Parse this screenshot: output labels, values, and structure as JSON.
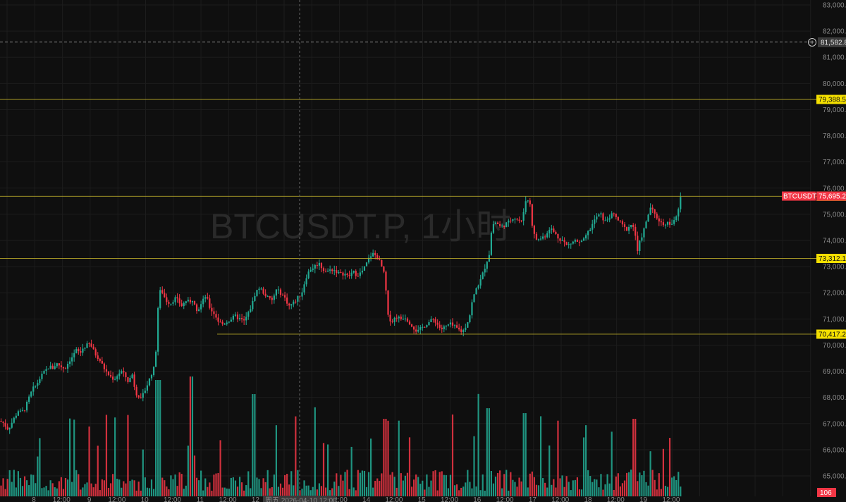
{
  "watermark": "BTCUSDT.P, 1小时",
  "symbol_tag": "BTCUSDT.P",
  "volume_tag": "106",
  "crosshair_price": "81,582.8",
  "crosshair_time": "周五 2026-04-10 12:00",
  "colors": {
    "background": "#0f0f0f",
    "grid": "#1c1c1c",
    "up": "#22ab94",
    "down": "#f23645",
    "level_line": "#b9a92a",
    "level_tag": "#f5e000",
    "last_price_tag": "#f23645",
    "axis_text": "#8a8a8a"
  },
  "chart_data": {
    "type": "candlestick",
    "title": "BTCUSDT.P, 1小时",
    "y_ticks": [
      "83,000.0",
      "82,000.0",
      "81,000.0",
      "80,000.0",
      "79,000.0",
      "78,000.0",
      "77,000.0",
      "76,000.0",
      "75,000.0",
      "74,000.0",
      "73,000.0",
      "72,000.0",
      "71,000.0",
      "70,000.0",
      "69,000.0",
      "68,000.0",
      "67,000.0",
      "66,000.0",
      "65,000.0"
    ],
    "ylim": [
      64900,
      83300
    ],
    "x_ticks": [
      "8",
      "12:00",
      "9",
      "12:00",
      "10",
      "12:00",
      "11",
      "12:00",
      "12",
      "12:00",
      "13",
      "12:00",
      "14",
      "12:00",
      "15",
      "12:00",
      "16",
      "12:00",
      "17",
      "12:00",
      "18",
      "12:00",
      "19",
      "12:00"
    ],
    "levels": [
      {
        "value": 79388.5,
        "label": "79,388.5"
      },
      {
        "value": 75689.6,
        "label": "75,689.6"
      },
      {
        "value": 73312.1,
        "label": "73,312.1"
      },
      {
        "value": 70417.2,
        "label": "70,417.2"
      }
    ],
    "last_price": {
      "value": 75695.2,
      "label": "75,695.2"
    },
    "crosshair": {
      "price": 81582.8,
      "label": "81,582.8"
    },
    "close_path": [
      [
        0,
        67100
      ],
      [
        6,
        67000
      ],
      [
        10,
        66800
      ],
      [
        14,
        66900
      ],
      [
        20,
        67200
      ],
      [
        26,
        67500
      ],
      [
        30,
        67400
      ],
      [
        36,
        67600
      ],
      [
        40,
        67900
      ],
      [
        46,
        68300
      ],
      [
        52,
        68500
      ],
      [
        58,
        68800
      ],
      [
        64,
        69000
      ],
      [
        70,
        69200
      ],
      [
        74,
        69100
      ],
      [
        80,
        69300
      ],
      [
        86,
        69200
      ],
      [
        92,
        69100
      ],
      [
        98,
        69400
      ],
      [
        104,
        69600
      ],
      [
        108,
        69800
      ],
      [
        114,
        69700
      ],
      [
        118,
        69900
      ],
      [
        124,
        70000
      ],
      [
        128,
        70050
      ],
      [
        134,
        69700
      ],
      [
        140,
        69500
      ],
      [
        144,
        69300
      ],
      [
        150,
        69000
      ],
      [
        156,
        68800
      ],
      [
        162,
        68700
      ],
      [
        168,
        68900
      ],
      [
        172,
        69000
      ],
      [
        178,
        68800
      ],
      [
        182,
        68600
      ],
      [
        188,
        68900
      ],
      [
        192,
        68200
      ],
      [
        196,
        68100
      ],
      [
        200,
        67900
      ],
      [
        206,
        68300
      ],
      [
        212,
        68700
      ],
      [
        216,
        69000
      ],
      [
        220,
        69200
      ],
      [
        224,
        71400
      ],
      [
        228,
        72200
      ],
      [
        232,
        71900
      ],
      [
        236,
        71700
      ],
      [
        242,
        71600
      ],
      [
        248,
        71800
      ],
      [
        252,
        71700
      ],
      [
        258,
        71500
      ],
      [
        264,
        71700
      ],
      [
        270,
        71600
      ],
      [
        274,
        71800
      ],
      [
        280,
        71300
      ],
      [
        286,
        71600
      ],
      [
        292,
        71900
      ],
      [
        298,
        71400
      ],
      [
        304,
        71200
      ],
      [
        310,
        70900
      ],
      [
        316,
        70800
      ],
      [
        322,
        70900
      ],
      [
        328,
        71000
      ],
      [
        334,
        71100
      ],
      [
        340,
        71000
      ],
      [
        346,
        70900
      ],
      [
        352,
        71200
      ],
      [
        358,
        71600
      ],
      [
        362,
        72000
      ],
      [
        368,
        72200
      ],
      [
        374,
        72000
      ],
      [
        380,
        71800
      ],
      [
        386,
        71700
      ],
      [
        392,
        72100
      ],
      [
        398,
        72000
      ],
      [
        404,
        71800
      ],
      [
        410,
        71500
      ],
      [
        416,
        71600
      ],
      [
        422,
        71800
      ],
      [
        428,
        72000
      ],
      [
        434,
        72600
      ],
      [
        440,
        72900
      ],
      [
        446,
        73000
      ],
      [
        452,
        73150
      ],
      [
        458,
        72900
      ],
      [
        464,
        72800
      ],
      [
        470,
        72900
      ],
      [
        476,
        72850
      ],
      [
        482,
        72700
      ],
      [
        488,
        72750
      ],
      [
        494,
        72600
      ],
      [
        500,
        72800
      ],
      [
        506,
        72700
      ],
      [
        512,
        72750
      ],
      [
        518,
        73000
      ],
      [
        524,
        73350
      ],
      [
        528,
        73500
      ],
      [
        534,
        73400
      ],
      [
        540,
        73100
      ],
      [
        546,
        72600
      ],
      [
        550,
        71100
      ],
      [
        556,
        70900
      ],
      [
        562,
        71100
      ],
      [
        568,
        71000
      ],
      [
        574,
        71100
      ],
      [
        580,
        70900
      ],
      [
        586,
        70700
      ],
      [
        592,
        70500
      ],
      [
        598,
        70650
      ],
      [
        604,
        70800
      ],
      [
        610,
        70900
      ],
      [
        616,
        71000
      ],
      [
        620,
        70800
      ],
      [
        626,
        70600
      ],
      [
        632,
        70700
      ],
      [
        638,
        70800
      ],
      [
        644,
        70700
      ],
      [
        650,
        70600
      ],
      [
        656,
        70500
      ],
      [
        660,
        70700
      ],
      [
        666,
        71100
      ],
      [
        670,
        71700
      ],
      [
        676,
        72200
      ],
      [
        682,
        72500
      ],
      [
        688,
        73000
      ],
      [
        694,
        73500
      ],
      [
        698,
        74600
      ],
      [
        704,
        74700
      ],
      [
        710,
        74500
      ],
      [
        716,
        74600
      ],
      [
        722,
        74700
      ],
      [
        728,
        74900
      ],
      [
        734,
        74800
      ],
      [
        740,
        74700
      ],
      [
        746,
        75600
      ],
      [
        752,
        75400
      ],
      [
        756,
        74300
      ],
      [
        762,
        74000
      ],
      [
        768,
        74100
      ],
      [
        774,
        74200
      ],
      [
        780,
        74500
      ],
      [
        786,
        74300
      ],
      [
        792,
        74100
      ],
      [
        798,
        74000
      ],
      [
        804,
        73800
      ],
      [
        810,
        73900
      ],
      [
        816,
        74000
      ],
      [
        822,
        73900
      ],
      [
        828,
        74000
      ],
      [
        834,
        74300
      ],
      [
        840,
        74600
      ],
      [
        846,
        74900
      ],
      [
        852,
        75000
      ],
      [
        858,
        74700
      ],
      [
        864,
        74900
      ],
      [
        870,
        75000
      ],
      [
        876,
        74800
      ],
      [
        882,
        74600
      ],
      [
        888,
        74400
      ],
      [
        894,
        74600
      ],
      [
        900,
        74500
      ],
      [
        904,
        73500
      ],
      [
        908,
        74000
      ],
      [
        912,
        74300
      ],
      [
        918,
        74800
      ],
      [
        922,
        75300
      ],
      [
        928,
        75000
      ],
      [
        934,
        74800
      ],
      [
        940,
        74600
      ],
      [
        946,
        74700
      ],
      [
        952,
        74600
      ],
      [
        958,
        74800
      ],
      [
        962,
        75100
      ],
      [
        966,
        75700
      ]
    ]
  }
}
